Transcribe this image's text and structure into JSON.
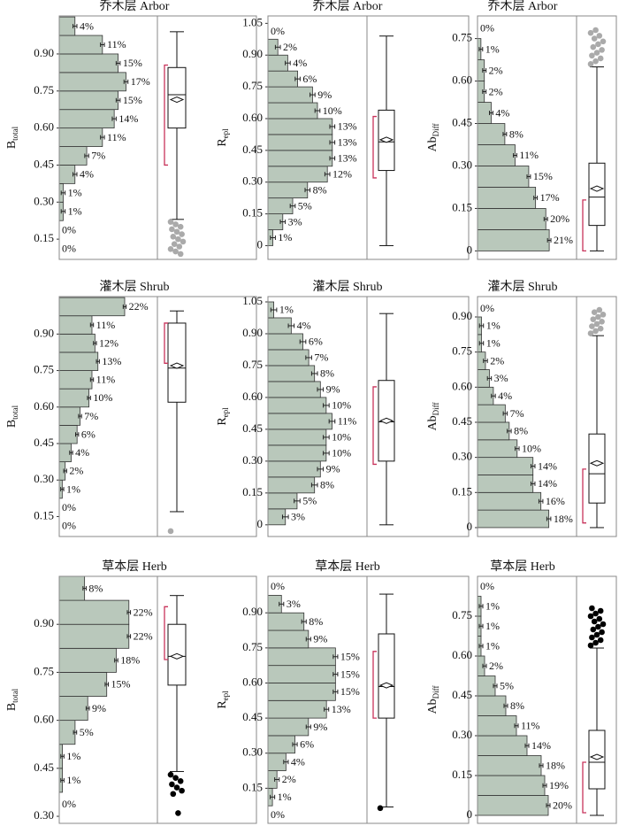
{
  "chart_data": [
    {
      "type": "histogram",
      "title": "乔木层 Arbor",
      "ylabel": "B",
      "ylabel_sub": "total",
      "color": "#b9c8bb",
      "bins": [
        0.075,
        0.15,
        0.225,
        0.3,
        0.375,
        0.45,
        0.525,
        0.6,
        0.675,
        0.75,
        0.825,
        0.9,
        0.975,
        1.05
      ],
      "values": [
        0,
        0,
        1,
        1,
        4,
        7,
        11,
        14,
        15,
        17,
        15,
        11,
        4
      ],
      "value_labels": [
        "0%",
        "0%",
        "1%",
        "1%",
        "4%",
        "7%",
        "11%",
        "14%",
        "15%",
        "17%",
        "15%",
        "11%",
        "4%"
      ],
      "error": 0.5,
      "xlim": [
        0,
        25
      ],
      "ylim": [
        0.068,
        1.054
      ],
      "yticks": [
        0.15,
        {
          "value": 0.3,
          "label": "0.30"
        },
        0.45,
        {
          "value": 0.6,
          "label": "0.60"
        },
        0.75,
        {
          "value": 0.9,
          "label": "0.90"
        }
      ],
      "box": {
        "whisker_low": 0.23,
        "q1": 0.6,
        "median": 0.735,
        "mean": 0.715,
        "q3": 0.845,
        "whisker_high": 0.99,
        "outliers": [
          0.22,
          0.21,
          0.2,
          0.19,
          0.18,
          0.17,
          0.16,
          0.15,
          0.14,
          0.13,
          0.12,
          0.11,
          0.1,
          0.09
        ],
        "outlier_color": "#aaaaaa"
      },
      "bracket": [
        0.45,
        0.855
      ],
      "bracket_color": "#c8325a"
    },
    {
      "type": "histogram",
      "title": "乔木层 Arbor",
      "ylabel": "R",
      "ylabel_sub": "epl",
      "color": "#b9c8bb",
      "bins": [
        0,
        0.075,
        0.15,
        0.225,
        0.3,
        0.375,
        0.45,
        0.525,
        0.6,
        0.675,
        0.75,
        0.825,
        0.9,
        0.975,
        1.05
      ],
      "values": [
        1,
        3,
        5,
        8,
        12,
        13,
        13,
        13,
        10,
        9,
        6,
        4,
        2,
        0
      ],
      "value_labels": [
        "1%",
        "3%",
        "5%",
        "8%",
        "12%",
        "13%",
        "13%",
        "13%",
        "10%",
        "9%",
        "6%",
        "4%",
        "2%",
        "0%"
      ],
      "error": 0.5,
      "xlim": [
        0,
        20
      ],
      "ylim": [
        -0.065,
        1.085
      ],
      "yticks": [
        0,
        0.15,
        {
          "value": 0.3,
          "label": "0.30"
        },
        0.45,
        {
          "value": 0.6,
          "label": "0.60"
        },
        0.75,
        {
          "value": 0.9,
          "label": "0.90"
        },
        1.05
      ],
      "box": {
        "whisker_low": 0,
        "q1": 0.355,
        "median": 0.49,
        "mean": 0.5,
        "q3": 0.64,
        "whisker_high": 0.99,
        "outliers": [],
        "outlier_color": "#aaaaaa"
      },
      "bracket": [
        0.32,
        0.61
      ],
      "bracket_color": "#c8325a"
    },
    {
      "type": "histogram",
      "title": "乔木层 Arbor",
      "ylabel": "Ab",
      "ylabel_sub": "Diff",
      "color": "#b9c8bb",
      "bins": [
        0,
        0.075,
        0.15,
        0.225,
        0.3,
        0.375,
        0.45,
        0.525,
        0.6,
        0.675,
        0.75,
        0.825
      ],
      "values": [
        21,
        20,
        17,
        15,
        11,
        8,
        4,
        2,
        2,
        1,
        0
      ],
      "value_labels": [
        "21%",
        "20%",
        "17%",
        "15%",
        "11%",
        "8%",
        "4%",
        "2%",
        "2%",
        "1%",
        "0%"
      ],
      "error": 0.5,
      "xlim": [
        0,
        29
      ],
      "ylim": [
        -0.03,
        0.83
      ],
      "yticks": [
        0,
        0.15,
        {
          "value": 0.3,
          "label": "0.30"
        },
        0.45,
        {
          "value": 0.6,
          "label": "0.60"
        },
        0.75
      ],
      "box": {
        "whisker_low": 0,
        "q1": 0.09,
        "median": 0.19,
        "mean": 0.22,
        "q3": 0.31,
        "whisker_high": 0.65,
        "outliers": [
          0.66,
          0.67,
          0.68,
          0.69,
          0.7,
          0.71,
          0.72,
          0.73,
          0.74,
          0.75,
          0.76,
          0.77,
          0.78
        ],
        "outlier_color": "#aaaaaa"
      },
      "bracket": [
        0,
        0.18
      ],
      "bracket_color": "#c8325a"
    },
    {
      "type": "histogram",
      "title": "灌木层 Shrub",
      "ylabel": "B",
      "ylabel_sub": "total",
      "color": "#b9c8bb",
      "bins": [
        0.075,
        0.15,
        0.225,
        0.3,
        0.375,
        0.45,
        0.525,
        0.6,
        0.675,
        0.75,
        0.825,
        0.9,
        0.975,
        1.05
      ],
      "values": [
        0,
        0,
        1,
        2,
        4,
        6,
        7,
        10,
        11,
        13,
        12,
        11,
        22
      ],
      "value_labels": [
        "0%",
        "0%",
        "1%",
        "2%",
        "4%",
        "6%",
        "7%",
        "10%",
        "11%",
        "13%",
        "12%",
        "11%",
        "22%"
      ],
      "error": 0.5,
      "xlim": [
        0,
        33
      ],
      "ylim": [
        0.068,
        1.054
      ],
      "yticks": [
        0.15,
        {
          "value": 0.3,
          "label": "0.30"
        },
        0.45,
        {
          "value": 0.6,
          "label": "0.60"
        },
        0.75,
        {
          "value": 0.9,
          "label": "0.90"
        }
      ],
      "box": {
        "whisker_low": 0.17,
        "q1": 0.62,
        "median": 0.76,
        "mean": 0.77,
        "q3": 0.945,
        "whisker_high": 0.995,
        "outliers": [
          0.09
        ],
        "outlier_color": "#aaaaaa"
      },
      "bracket": [
        0.78,
        0.945
      ],
      "bracket_color": "#c8325a"
    },
    {
      "type": "histogram",
      "title": "灌木层 Shrub",
      "ylabel": "R",
      "ylabel_sub": "epl",
      "color": "#b9c8bb",
      "bins": [
        0,
        0.075,
        0.15,
        0.225,
        0.3,
        0.375,
        0.45,
        0.525,
        0.6,
        0.675,
        0.75,
        0.825,
        0.9,
        0.975,
        1.05
      ],
      "values": [
        3,
        5,
        8,
        9,
        10,
        10,
        11,
        10,
        9,
        8,
        7,
        6,
        4,
        1
      ],
      "value_labels": [
        "3%",
        "5%",
        "8%",
        "9%",
        "10%",
        "10%",
        "11%",
        "10%",
        "9%",
        "8%",
        "7%",
        "6%",
        "4%",
        "1%"
      ],
      "error": 0.5,
      "xlim": [
        0,
        17
      ],
      "ylim": [
        -0.055,
        1.075
      ],
      "yticks": [
        0,
        0.15,
        {
          "value": 0.3,
          "label": "0.30"
        },
        0.45,
        {
          "value": 0.6,
          "label": "0.60"
        },
        0.75,
        {
          "value": 0.9,
          "label": "0.90"
        },
        1.05
      ],
      "box": {
        "whisker_low": 0,
        "q1": 0.3,
        "median": 0.485,
        "mean": 0.49,
        "q3": 0.68,
        "whisker_high": 0.995,
        "outliers": [],
        "outlier_color": "#aaaaaa"
      },
      "bracket": [
        0.285,
        0.65
      ],
      "bracket_color": "#c8325a"
    },
    {
      "type": "histogram",
      "title": "灌木层 Shrub",
      "ylabel": "Ab",
      "ylabel_sub": "Diff",
      "color": "#b9c8bb",
      "bins": [
        0,
        0.075,
        0.15,
        0.225,
        0.3,
        0.375,
        0.45,
        0.525,
        0.6,
        0.675,
        0.75,
        0.825,
        0.9,
        0.975
      ],
      "values": [
        18,
        16,
        14,
        14,
        10,
        8,
        7,
        4,
        3,
        2,
        1,
        1,
        0
      ],
      "value_labels": [
        "18%",
        "16%",
        "14%",
        "14%",
        "10%",
        "8%",
        "7%",
        "4%",
        "3%",
        "2%",
        "1%",
        "1%",
        "0%"
      ],
      "error": 0.5,
      "xlim": [
        0,
        25
      ],
      "ylim": [
        -0.038,
        0.987
      ],
      "yticks": [
        0,
        0.15,
        {
          "value": 0.3,
          "label": "0.30"
        },
        0.45,
        {
          "value": 0.6,
          "label": "0.60"
        },
        0.75,
        {
          "value": 0.9,
          "label": "0.90"
        }
      ],
      "box": {
        "whisker_low": 0,
        "q1": 0.105,
        "median": 0.23,
        "mean": 0.275,
        "q3": 0.4,
        "whisker_high": 0.82,
        "outliers": [
          0.83,
          0.84,
          0.85,
          0.86,
          0.87,
          0.88,
          0.89,
          0.9,
          0.91,
          0.92,
          0.93
        ],
        "outlier_color": "#aaaaaa"
      },
      "bracket": [
        0.02,
        0.25
      ],
      "bracket_color": "#c8325a"
    },
    {
      "type": "histogram",
      "title": "草本层 Herb",
      "ylabel": "B",
      "ylabel_sub": "total",
      "color": "#b9c8bb",
      "bins": [
        0.3,
        0.375,
        0.45,
        0.525,
        0.6,
        0.675,
        0.75,
        0.825,
        0.9,
        0.975,
        1.05
      ],
      "values": [
        0,
        1,
        1,
        5,
        9,
        15,
        18,
        22,
        22,
        8
      ],
      "value_labels": [
        "0%",
        "1%",
        "1%",
        "5%",
        "9%",
        "15%",
        "18%",
        "22%",
        "22%",
        "8%"
      ],
      "error": 0.5,
      "xlim": [
        0,
        31
      ],
      "ylim": [
        0.278,
        1.05
      ],
      "yticks": [
        {
          "value": 0.3,
          "label": "0.30"
        },
        0.45,
        {
          "value": 0.6,
          "label": "0.60"
        },
        0.75,
        {
          "value": 0.9,
          "label": "0.90"
        }
      ],
      "box": {
        "whisker_low": 0.44,
        "q1": 0.71,
        "median": 0.8,
        "mean": 0.8,
        "q3": 0.9,
        "whisker_high": 0.99,
        "outliers": [
          0.43,
          0.42,
          0.41,
          0.4,
          0.39,
          0.38,
          0.37,
          0.31
        ],
        "outlier_color": "#000000"
      },
      "bracket": [
        0.79,
        0.955
      ],
      "bracket_color": "#c8325a"
    },
    {
      "type": "histogram",
      "title": "草本层 Herb",
      "ylabel": "R",
      "ylabel_sub": "epl",
      "color": "#b9c8bb",
      "bins": [
        0,
        0.075,
        0.15,
        0.225,
        0.3,
        0.375,
        0.45,
        0.525,
        0.6,
        0.675,
        0.75,
        0.825,
        0.9,
        0.975,
        1.05
      ],
      "values": [
        0,
        1,
        2,
        4,
        6,
        9,
        13,
        15,
        15,
        15,
        9,
        8,
        3,
        0
      ],
      "value_labels": [
        "0%",
        "1%",
        "2%",
        "4%",
        "6%",
        "9%",
        "13%",
        "15%",
        "15%",
        "15%",
        "9%",
        "8%",
        "3%",
        "0%"
      ],
      "error": 0.5,
      "xlim": [
        0,
        22
      ],
      "ylim": [
        0,
        1.056
      ],
      "yticks": [
        0.15,
        {
          "value": 0.3,
          "label": "0.30"
        },
        0.45,
        {
          "value": 0.6,
          "label": "0.60"
        },
        0.75,
        {
          "value": 0.9,
          "label": "0.90"
        }
      ],
      "box": {
        "whisker_low": 0.07,
        "q1": 0.45,
        "median": 0.585,
        "mean": 0.59,
        "q3": 0.81,
        "whisker_high": 0.98,
        "outliers": [
          0.065
        ],
        "outlier_color": "#000000"
      },
      "bracket": [
        0.45,
        0.735
      ],
      "bracket_color": "#c8325a"
    },
    {
      "type": "histogram",
      "title": "草本层 Herb",
      "ylabel": "Ab",
      "ylabel_sub": "Diff",
      "color": "#b9c8bb",
      "bins": [
        0,
        0.075,
        0.15,
        0.225,
        0.3,
        0.375,
        0.45,
        0.525,
        0.6,
        0.675,
        0.75,
        0.825,
        0.9
      ],
      "values": [
        20,
        19,
        18,
        14,
        11,
        8,
        5,
        2,
        1,
        1,
        1,
        0
      ],
      "value_labels": [
        "20%",
        "19%",
        "18%",
        "14%",
        "11%",
        "8%",
        "5%",
        "2%",
        "1%",
        "1%",
        "1%",
        "0%"
      ],
      "error": 0.5,
      "xlim": [
        0,
        28
      ],
      "ylim": [
        -0.03,
        0.9
      ],
      "yticks": [
        0,
        0.15,
        {
          "value": 0.3,
          "label": "0.30"
        },
        0.45,
        {
          "value": 0.6,
          "label": "0.60"
        },
        0.75
      ],
      "box": {
        "whisker_low": 0,
        "q1": 0.1,
        "median": 0.2,
        "mean": 0.22,
        "q3": 0.32,
        "whisker_high": 0.63,
        "outliers": [
          0.64,
          0.65,
          0.66,
          0.67,
          0.68,
          0.69,
          0.7,
          0.71,
          0.72,
          0.73,
          0.74,
          0.75,
          0.76,
          0.77,
          0.78
        ],
        "outlier_color": "#000000"
      },
      "bracket": [
        0.01,
        0.2
      ],
      "bracket_color": "#c8325a"
    }
  ]
}
